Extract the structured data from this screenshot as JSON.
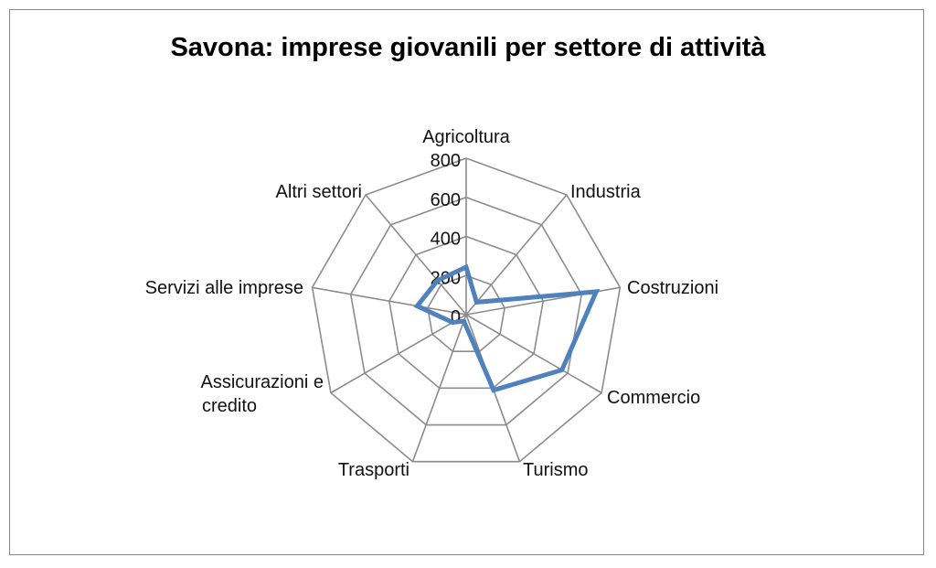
{
  "chart_data": {
    "type": "radar",
    "title": "Savona: imprese giovanili per settore di attività",
    "categories": [
      "Agricoltura",
      "Industria",
      "Costruzioni",
      "Commercio",
      "Turismo",
      "Trasporti",
      "Assicurazioni e credito",
      "Servizi alle imprese",
      "Altri settori"
    ],
    "values": [
      243,
      83,
      676,
      566,
      411,
      35,
      80,
      255,
      228
    ],
    "rlim": [
      0,
      800
    ],
    "ticks": [
      "0",
      "200",
      "400",
      "600",
      "800"
    ],
    "grid": true,
    "legend": "none",
    "series_color": "#4F81BD",
    "grid_color": "#8C8C8C"
  }
}
